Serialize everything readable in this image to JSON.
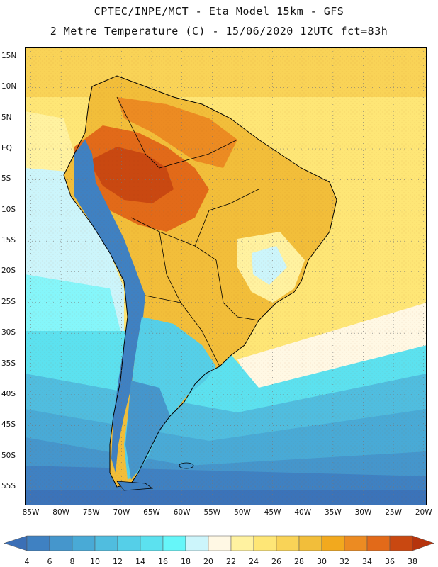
{
  "header": {
    "line1": "CPTEC/INPE/MCT -  Eta Model 15km - GFS",
    "line2": "2 Metre Temperature (C) - 15/06/2020 12UTC fct=83h"
  },
  "map": {
    "lat_labels": [
      "15N",
      "10N",
      "5N",
      "EQ",
      "5S",
      "10S",
      "15S",
      "20S",
      "25S",
      "30S",
      "35S",
      "40S",
      "45S",
      "50S",
      "55S"
    ],
    "lon_labels": [
      "85W",
      "80W",
      "75W",
      "70W",
      "65W",
      "60W",
      "55W",
      "50W",
      "45W",
      "40W",
      "35W",
      "30W",
      "25W",
      "20W"
    ],
    "lat_range": [
      -58,
      16.5
    ],
    "lon_range": [
      -86,
      -19.5
    ]
  },
  "colorbar": {
    "labels": [
      "4",
      "6",
      "8",
      "10",
      "12",
      "14",
      "16",
      "18",
      "20",
      "22",
      "24",
      "26",
      "28",
      "30",
      "32",
      "34",
      "36",
      "38"
    ],
    "colors": [
      "#3b6fb6",
      "#3f81c2",
      "#4596cc",
      "#49aad6",
      "#50bddf",
      "#55cfe8",
      "#5ce1ef",
      "#66f6f9",
      "#ccf5fb",
      "#fff8e4",
      "#fff2a0",
      "#fee676",
      "#f9d357",
      "#f2be3a",
      "#f2a91e",
      "#ec8b22",
      "#e26a19",
      "#c94811",
      "#b6340d"
    ]
  }
}
